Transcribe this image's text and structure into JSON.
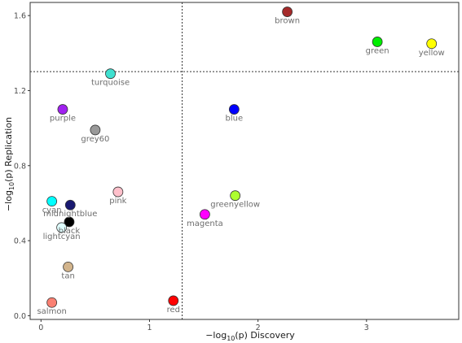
{
  "chart_data": {
    "type": "scatter",
    "xlabel_pre": "−log",
    "xlabel_sub": "10",
    "xlabel_post": "(p) Discovery",
    "ylabel_pre": "−log",
    "ylabel_sub": "10",
    "ylabel_post": "(p) Replication",
    "xlim": [
      -0.1,
      3.85
    ],
    "ylim": [
      -0.02,
      1.67
    ],
    "x_ticks": [
      0,
      1,
      2,
      3
    ],
    "y_ticks": [
      0.0,
      0.4,
      0.8,
      1.2,
      1.6
    ],
    "x_tick_labels": [
      "0",
      "1",
      "2",
      "3"
    ],
    "y_tick_labels": [
      "0.0",
      "0.4",
      "0.8",
      "1.2",
      "1.6"
    ],
    "grid": false,
    "thresholds": {
      "x": 1.301,
      "y": 1.301
    },
    "points": [
      {
        "label": "brown",
        "x": 2.27,
        "y": 1.62,
        "color": "#a52a2a"
      },
      {
        "label": "green",
        "x": 3.1,
        "y": 1.46,
        "color": "#00ee00"
      },
      {
        "label": "yellow",
        "x": 3.6,
        "y": 1.45,
        "color": "#ffff00"
      },
      {
        "label": "turquoise",
        "x": 0.64,
        "y": 1.29,
        "color": "#40e0d0"
      },
      {
        "label": "purple",
        "x": 0.2,
        "y": 1.1,
        "color": "#a020f0"
      },
      {
        "label": "blue",
        "x": 1.78,
        "y": 1.1,
        "color": "#0000ff"
      },
      {
        "label": "grey60",
        "x": 0.5,
        "y": 0.99,
        "color": "#999999"
      },
      {
        "label": "pink",
        "x": 0.71,
        "y": 0.66,
        "color": "#ffc0cb"
      },
      {
        "label": "greenyellow",
        "x": 1.79,
        "y": 0.64,
        "color": "#adff2f"
      },
      {
        "label": "cyan",
        "x": 0.1,
        "y": 0.61,
        "color": "#00ffff"
      },
      {
        "label": "midnightblue",
        "x": 0.27,
        "y": 0.59,
        "color": "#191970"
      },
      {
        "label": "magenta",
        "x": 1.51,
        "y": 0.54,
        "color": "#ff00ff"
      },
      {
        "label": "black",
        "x": 0.26,
        "y": 0.5,
        "color": "#000000"
      },
      {
        "label": "lightcyan",
        "x": 0.19,
        "y": 0.47,
        "color": "#e0ffff"
      },
      {
        "label": "tan",
        "x": 0.25,
        "y": 0.26,
        "color": "#d2b48c"
      },
      {
        "label": "red",
        "x": 1.22,
        "y": 0.08,
        "color": "#ff0000"
      },
      {
        "label": "salmon",
        "x": 0.1,
        "y": 0.07,
        "color": "#fa8072"
      }
    ]
  }
}
